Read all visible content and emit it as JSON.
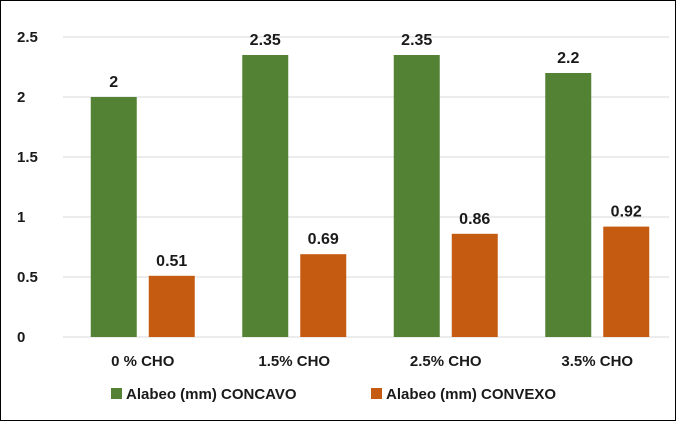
{
  "chart_data": {
    "type": "bar",
    "categories": [
      "0 % CHO",
      "1.5% CHO",
      "2.5% CHO",
      "3.5% CHO"
    ],
    "series": [
      {
        "name": "Alabeo (mm) CONCAVO",
        "values": [
          2,
          2.35,
          2.35,
          2.2
        ],
        "labels": [
          "2",
          "2.35",
          "2.35",
          "2.2"
        ],
        "color": "#548235"
      },
      {
        "name": "Alabeo (mm) CONVEXO",
        "values": [
          0.51,
          0.69,
          0.86,
          0.92
        ],
        "labels": [
          "0.51",
          "0.69",
          "0.86",
          "0.92"
        ],
        "color": "#C55A11"
      }
    ],
    "yticks": [
      "0",
      "0.5",
      "1",
      "1.5",
      "2",
      "2.5"
    ],
    "ylim": [
      0,
      2.5
    ],
    "grid": true,
    "legend": "bottom",
    "gridcolor": "#d9d9d9"
  }
}
